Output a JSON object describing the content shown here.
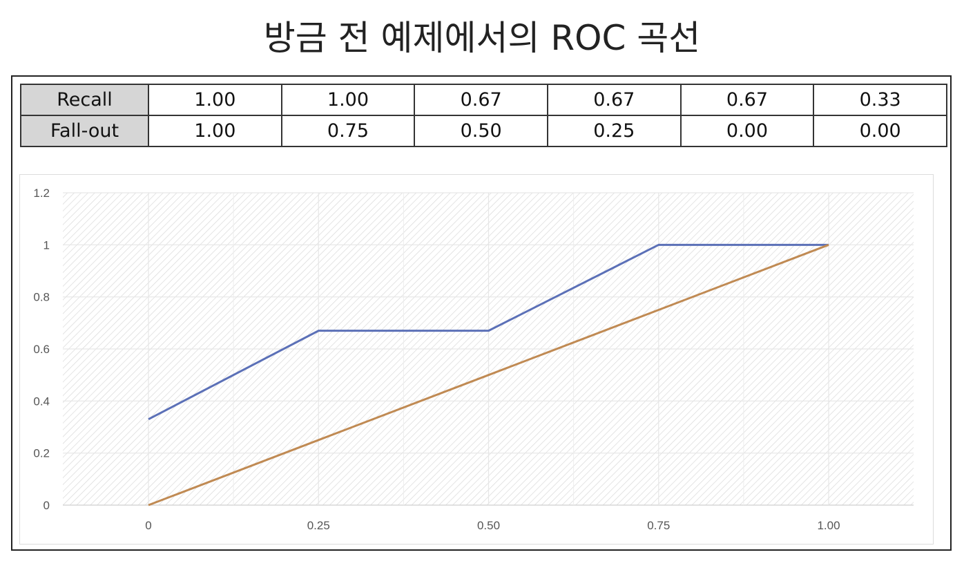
{
  "title": "방금 전 예제에서의 ROC 곡선",
  "table": {
    "rows": [
      {
        "label": "Recall",
        "values": [
          "1.00",
          "1.00",
          "0.67",
          "0.67",
          "0.67",
          "0.33"
        ]
      },
      {
        "label": "Fall-out",
        "values": [
          "1.00",
          "0.75",
          "0.50",
          "0.25",
          "0.00",
          "0.00"
        ]
      }
    ]
  },
  "chart_data": {
    "type": "line",
    "x_categories": [
      "0",
      "0.25",
      "0.50",
      "0.75",
      "1.00"
    ],
    "y_ticks": [
      "0",
      "0.2",
      "0.4",
      "0.6",
      "0.8",
      "1",
      "1.2"
    ],
    "ylim": [
      0,
      1.2
    ],
    "xlim": [
      0,
      1
    ],
    "grid": true,
    "series": [
      {
        "color": "#5b70b7",
        "points": [
          [
            0,
            0.33
          ],
          [
            0.25,
            0.67
          ],
          [
            0.5,
            0.67
          ],
          [
            0.75,
            1.0
          ],
          [
            1.0,
            1.0
          ]
        ]
      },
      {
        "color": "#c08a53",
        "points": [
          [
            0,
            0
          ],
          [
            0.25,
            0.25
          ],
          [
            0.5,
            0.5
          ],
          [
            0.75,
            0.75
          ],
          [
            1.0,
            1.0
          ]
        ]
      }
    ]
  }
}
